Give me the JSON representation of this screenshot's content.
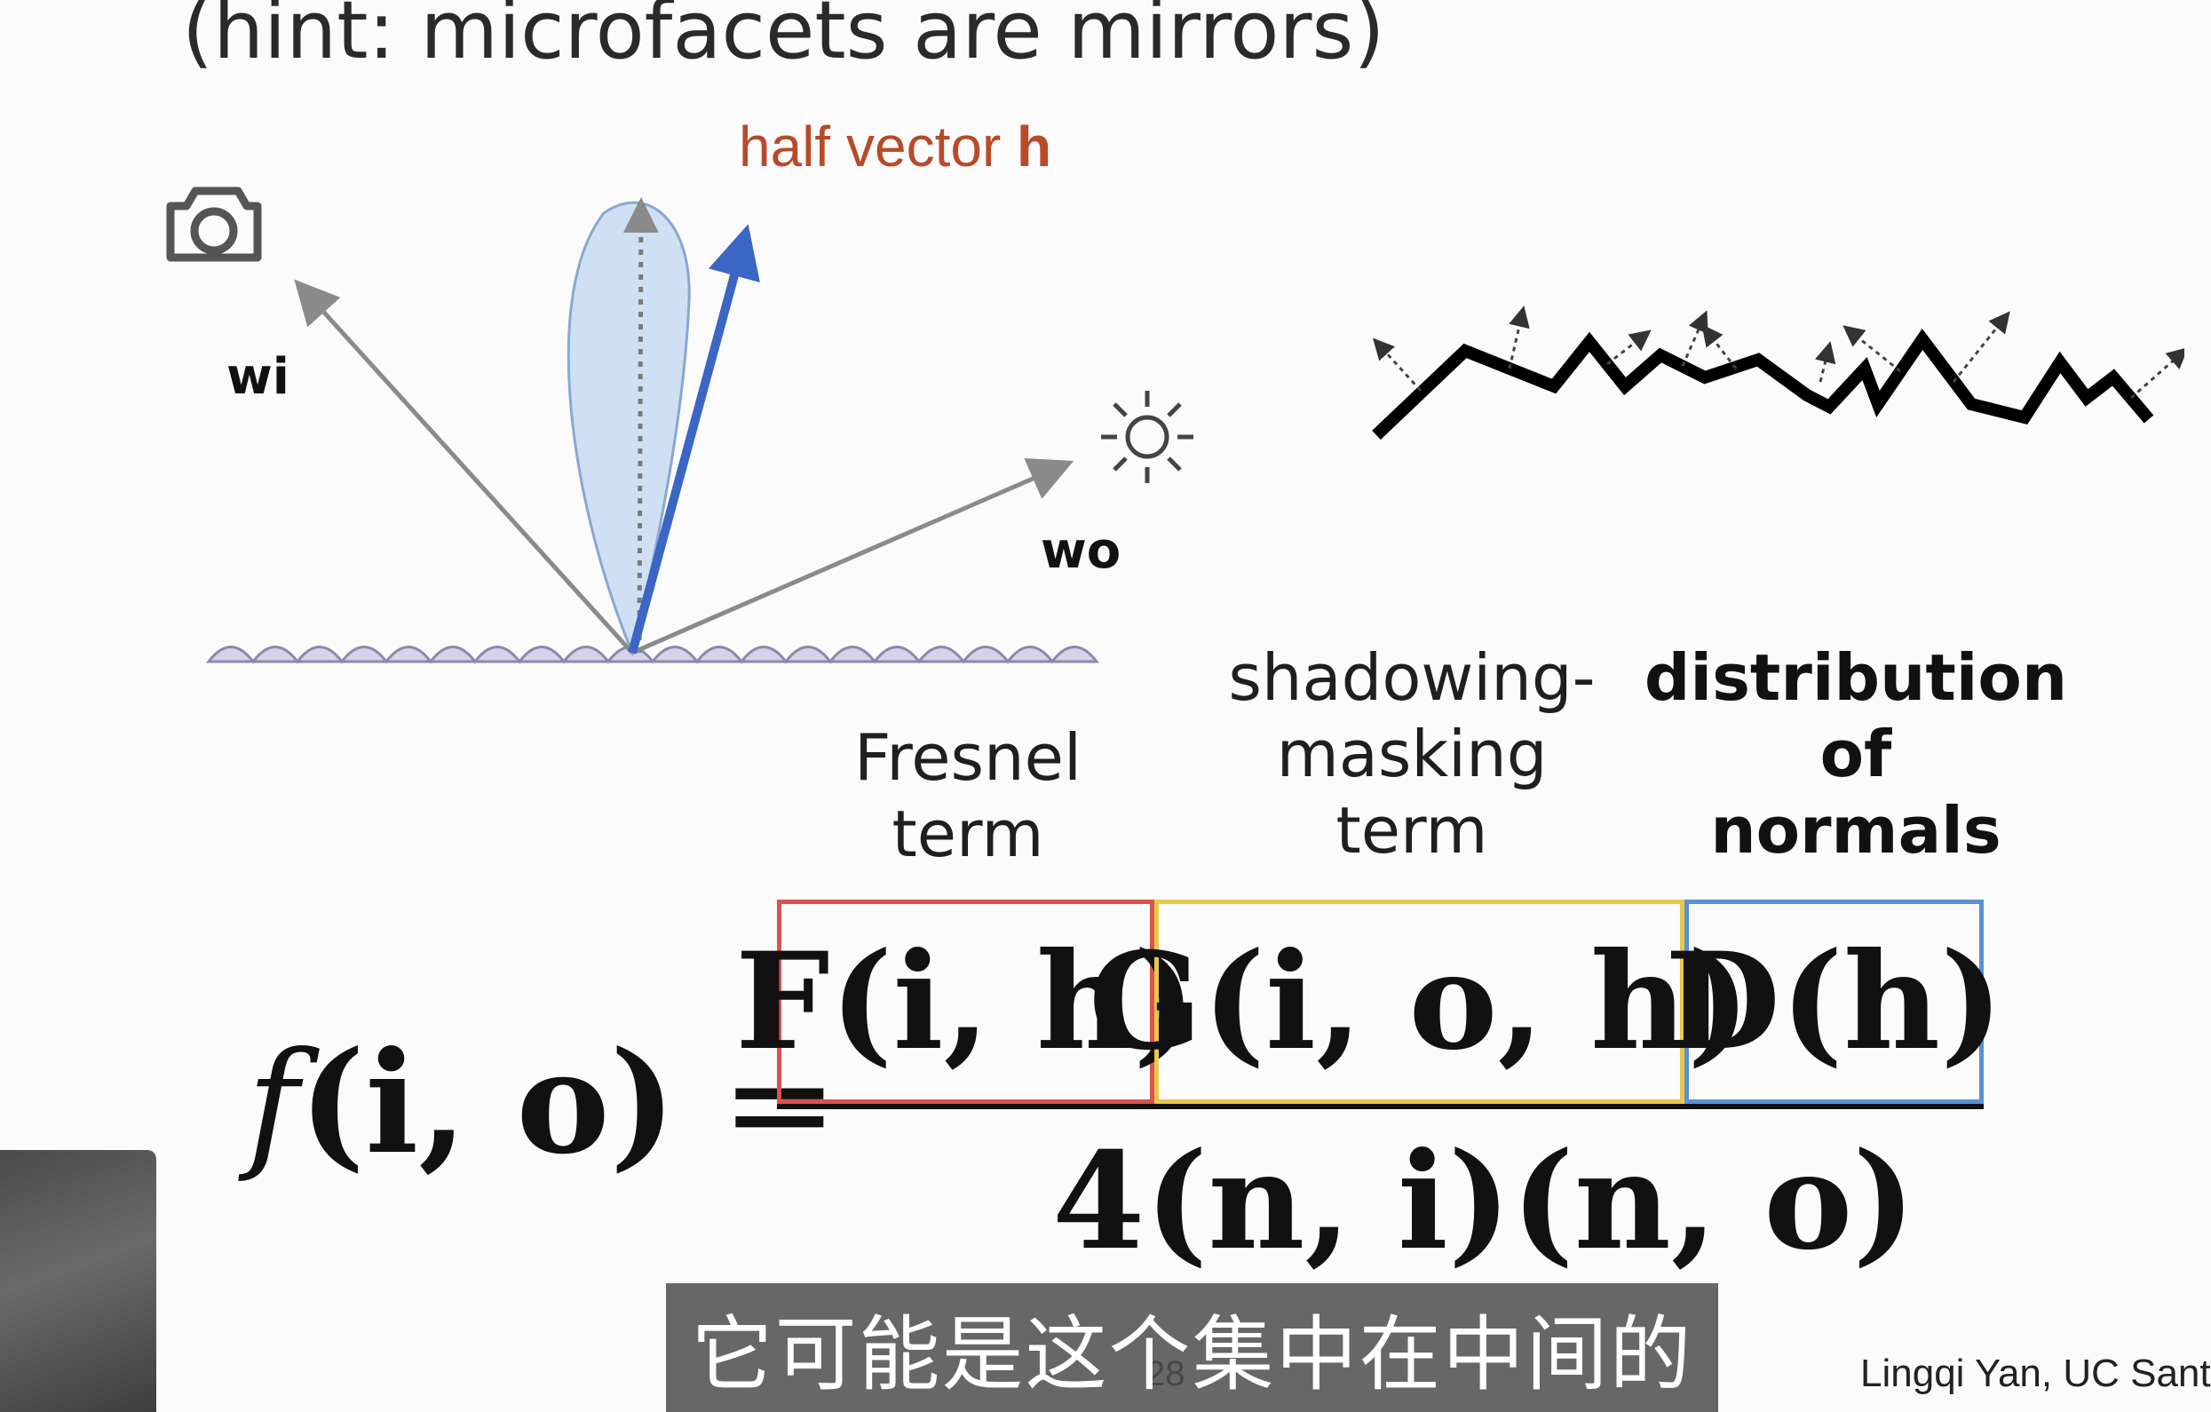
{
  "hint": "(hint: microfacets are mirrors)",
  "half_vector_label": "half vector",
  "half_vector_symbol": "h",
  "wi_label": "wi",
  "wo_label": "wo",
  "terms": {
    "fresnel": [
      "Fresnel",
      "term"
    ],
    "shadowing": [
      "shadowing-",
      "masking",
      "term"
    ],
    "distribution": [
      "distribution",
      "of",
      "normals"
    ]
  },
  "equation": {
    "lhs_f": "f",
    "lhs_args": "(i, o)",
    "equals": "=",
    "fresnel": "F(i, h)",
    "geometry": "G(i, o, h)",
    "distribution": "D(h)",
    "denominator": "4(n, i)(n, o)"
  },
  "colors": {
    "fresnel_box": "#d9534f",
    "geometry_box": "#e8c84a",
    "distribution_box": "#5b8fd6",
    "half_vector": "#3b66c4",
    "half_vector_label": "#b84a2a"
  },
  "subtitle": "它可能是这个集中在中间的",
  "page_number": "28",
  "author": "Lingqi Yan, UC Sant",
  "icons": [
    "camera-icon",
    "sun-icon"
  ]
}
